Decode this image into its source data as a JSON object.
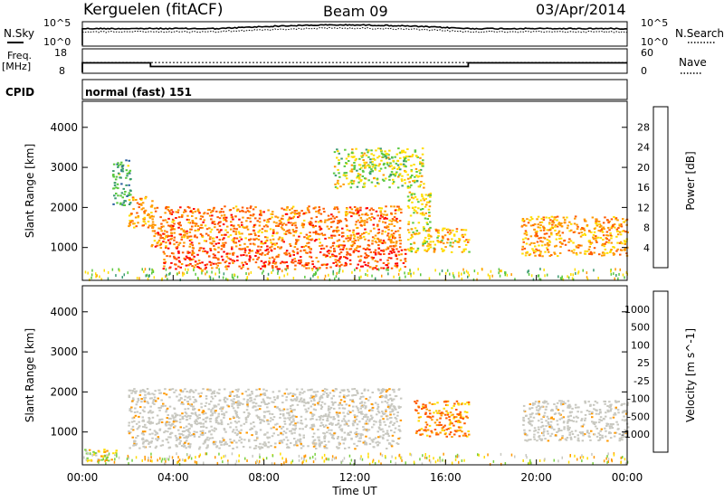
{
  "header": {
    "site": "Kerguelen (fitACF)",
    "beam": "Beam 09",
    "date": "03/Apr/2014"
  },
  "status_panels": {
    "nsky": {
      "label": "N.Sky",
      "left_ticks": [
        "10^5",
        "10^0"
      ],
      "right_label": "N.Search",
      "right_ticks": [
        "10^5",
        "10^0"
      ]
    },
    "freq": {
      "label_line1": "Freq.",
      "label_line2": "[MHz]",
      "left_ticks": [
        "18",
        "8"
      ],
      "right_label": "Nave",
      "right_ticks": [
        "60",
        "0"
      ],
      "freq_mhz_segments": [
        {
          "from": "00:00",
          "to": "03:00",
          "value": 12.2
        },
        {
          "from": "03:00",
          "to": "17:00",
          "value": 10.6
        },
        {
          "from": "17:00",
          "to": "24:00",
          "value": 12.2
        }
      ],
      "nave_level": 26
    },
    "cpid": {
      "label": "CPID",
      "value": "normal (fast) 151"
    }
  },
  "x_axis": {
    "label": "Time UT",
    "ticks": [
      "00:00",
      "04:00",
      "08:00",
      "12:00",
      "16:00",
      "20:00",
      "00:00"
    ]
  },
  "chart_data": [
    {
      "type": "heatmap",
      "title": "",
      "xlabel": "Time UT",
      "ylabel": "Slant Range [km]",
      "x_range_hours": [
        0,
        24
      ],
      "ylim": [
        180,
        4650
      ],
      "yticks": [
        "1000",
        "2000",
        "3000",
        "4000"
      ],
      "colorbar": {
        "label": "Power [dB]",
        "ticks": [
          "28",
          "24",
          "20",
          "16",
          "12",
          "8",
          "4"
        ],
        "colors": [
          "#ff0000",
          "#ff5a00",
          "#ff9900",
          "#ffdd00",
          "#5ac840",
          "#3a9a70",
          "#2a5fa0",
          "#0000ff"
        ]
      },
      "regions": [
        {
          "t": [
            1.3,
            2.1
          ],
          "r": [
            2000,
            3200
          ],
          "level": 12
        },
        {
          "t": [
            2.0,
            3.1
          ],
          "r": [
            1500,
            2300
          ],
          "level": 22
        },
        {
          "t": [
            3.0,
            14.0
          ],
          "r": [
            1000,
            2050
          ],
          "level": 24
        },
        {
          "t": [
            3.5,
            14.2
          ],
          "r": [
            480,
            1000
          ],
          "level": 27
        },
        {
          "t": [
            14.3,
            15.3
          ],
          "r": [
            900,
            2400
          ],
          "level": 18
        },
        {
          "t": [
            15.2,
            17.0
          ],
          "r": [
            900,
            1500
          ],
          "level": 20
        },
        {
          "t": [
            19.3,
            24.0
          ],
          "r": [
            800,
            1800
          ],
          "level": 22
        },
        {
          "t": [
            11.0,
            15.0
          ],
          "r": [
            2500,
            3500
          ],
          "level": 16
        }
      ]
    },
    {
      "type": "heatmap",
      "title": "",
      "xlabel": "Time UT",
      "ylabel": "Slant Range [km]",
      "x_range_hours": [
        0,
        24
      ],
      "ylim": [
        180,
        4650
      ],
      "yticks": [
        "1000",
        "2000",
        "3000",
        "4000"
      ],
      "colorbar": {
        "label": "Velocity [m s^-1]",
        "ticks": [
          "1000",
          "500",
          "100",
          "25",
          "-25",
          "-100",
          "-500",
          "-1000"
        ],
        "colors": [
          "#2050b0",
          "#2a7a8a",
          "#3a9a50",
          "#7ad040",
          "#c8c8c0",
          "#ffdd00",
          "#ff9900",
          "#ff5a00",
          "#ff0000"
        ]
      },
      "regions": [
        {
          "t": [
            2.0,
            14.0
          ],
          "r": [
            600,
            2100
          ],
          "level": 0
        },
        {
          "t": [
            14.6,
            17.0
          ],
          "r": [
            900,
            1800
          ],
          "level": -300
        },
        {
          "t": [
            19.3,
            24.0
          ],
          "r": [
            800,
            1800
          ],
          "level": 0
        },
        {
          "t": [
            0.0,
            1.5
          ],
          "r": [
            250,
            600
          ],
          "level": -50
        }
      ]
    }
  ]
}
